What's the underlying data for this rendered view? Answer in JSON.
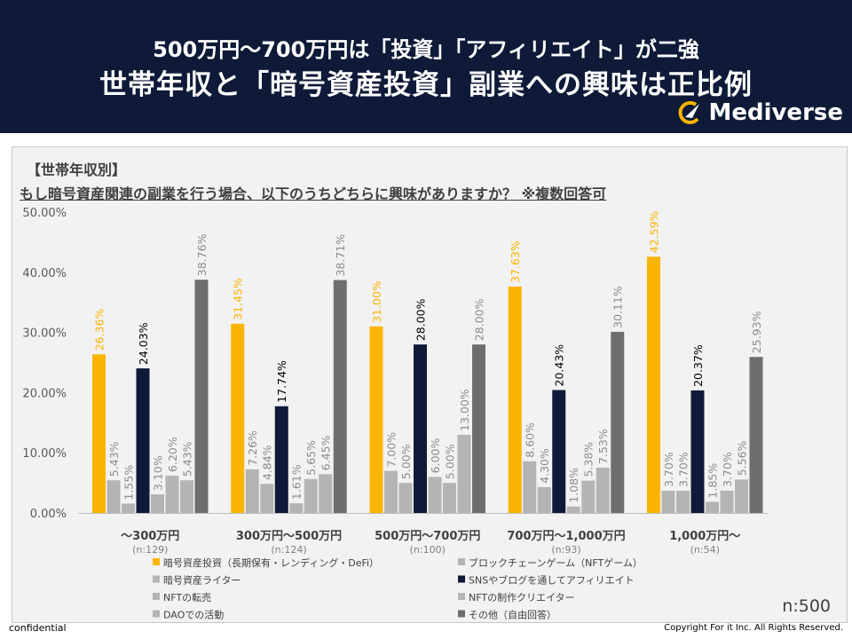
{
  "header": {
    "subtitle": "500万円〜700万円は「投資」「アフィリエイト」が二強",
    "title": "世帯年収と「暗号資産投資」副業への興味は正比例",
    "brand": "Mediverse",
    "bg_color": "#0e1a38"
  },
  "question": {
    "category": "【世帯年収別】",
    "text": "もし暗号資産関連の副業を行う場合、以下のうちどちらに興味がありますか？ ※複数回答可"
  },
  "footer": {
    "n_total": "n:500",
    "confidential": "confidential",
    "copyright": "Copyright For it Inc. All Rights Reserved."
  },
  "chart_data": {
    "type": "bar",
    "ylim": [
      0,
      50
    ],
    "y_ticks": [
      "0.00%",
      "10.00%",
      "20.00%",
      "30.00%",
      "40.00%",
      "50.00%"
    ],
    "grid": false,
    "legend_position": "bottom",
    "categories": [
      "〜300万円",
      "300万円〜500万円",
      "500万円〜700万円",
      "700万円〜1,000万円",
      "1,000万円〜"
    ],
    "category_n": [
      "(n:129)",
      "(n:124)",
      "(n:100)",
      "(n:93)",
      "(n:54)"
    ],
    "series": [
      {
        "name": "暗号資産投資（長期保有・レンディング・DeFi）",
        "color": "#fbb400",
        "labels": [
          "26.36%",
          "31.45%",
          "31.00%",
          "37.63%",
          "42.59%"
        ],
        "values": [
          26.36,
          31.45,
          31.0,
          37.63,
          42.59
        ]
      },
      {
        "name": "暗号資産ライター",
        "color": "#b4b4b4",
        "labels": [
          "5.43%",
          "7.26%",
          "7.00%",
          "8.60%",
          "3.70%"
        ],
        "values": [
          5.43,
          7.26,
          7.0,
          8.6,
          3.7
        ]
      },
      {
        "name": "DAOでの活動",
        "color": "#b4b4b4",
        "labels": [
          "1.55%",
          "4.84%",
          "5.00%",
          "4.30%",
          "3.70%"
        ],
        "values": [
          1.55,
          4.84,
          5.0,
          4.3,
          3.7
        ]
      },
      {
        "name": "SNSやブログを通してアフィリエイト",
        "color": "#0e1a38",
        "labels": [
          "24.03%",
          "17.74%",
          "28.00%",
          "20.43%",
          "20.37%"
        ],
        "values": [
          24.03,
          17.74,
          28.0,
          20.43,
          20.37
        ]
      },
      {
        "name": "NFTの転売",
        "color": "#b4b4b4",
        "labels": [
          "3.10%",
          "1.61%",
          "6.00%",
          "1.08%",
          "1.85%"
        ],
        "values": [
          3.1,
          1.61,
          6.0,
          1.08,
          1.85
        ]
      },
      {
        "name": "NFTの制作クリエイター",
        "color": "#b4b4b4",
        "labels": [
          "6.20%",
          "5.65%",
          "5.00%",
          "5.38%",
          "3.70%"
        ],
        "values": [
          6.2,
          5.65,
          5.0,
          5.38,
          3.7
        ]
      },
      {
        "name": "ブロックチェーンゲーム（NFTゲーム）",
        "color": "#b4b4b4",
        "labels": [
          "5.43%",
          "6.45%",
          "13.00%",
          "7.53%",
          "5.56%"
        ],
        "values": [
          5.43,
          6.45,
          13.0,
          7.53,
          5.56
        ]
      },
      {
        "name": "その他（自由回答）",
        "color": "#6e6e6e",
        "labels": [
          "38.76%",
          "38.71%",
          "28.00%",
          "30.11%",
          "25.93%"
        ],
        "values": [
          38.76,
          38.71,
          28.0,
          30.11,
          25.93
        ]
      }
    ],
    "legend_order": [
      0,
      6,
      1,
      3,
      4,
      5,
      2,
      7
    ]
  }
}
